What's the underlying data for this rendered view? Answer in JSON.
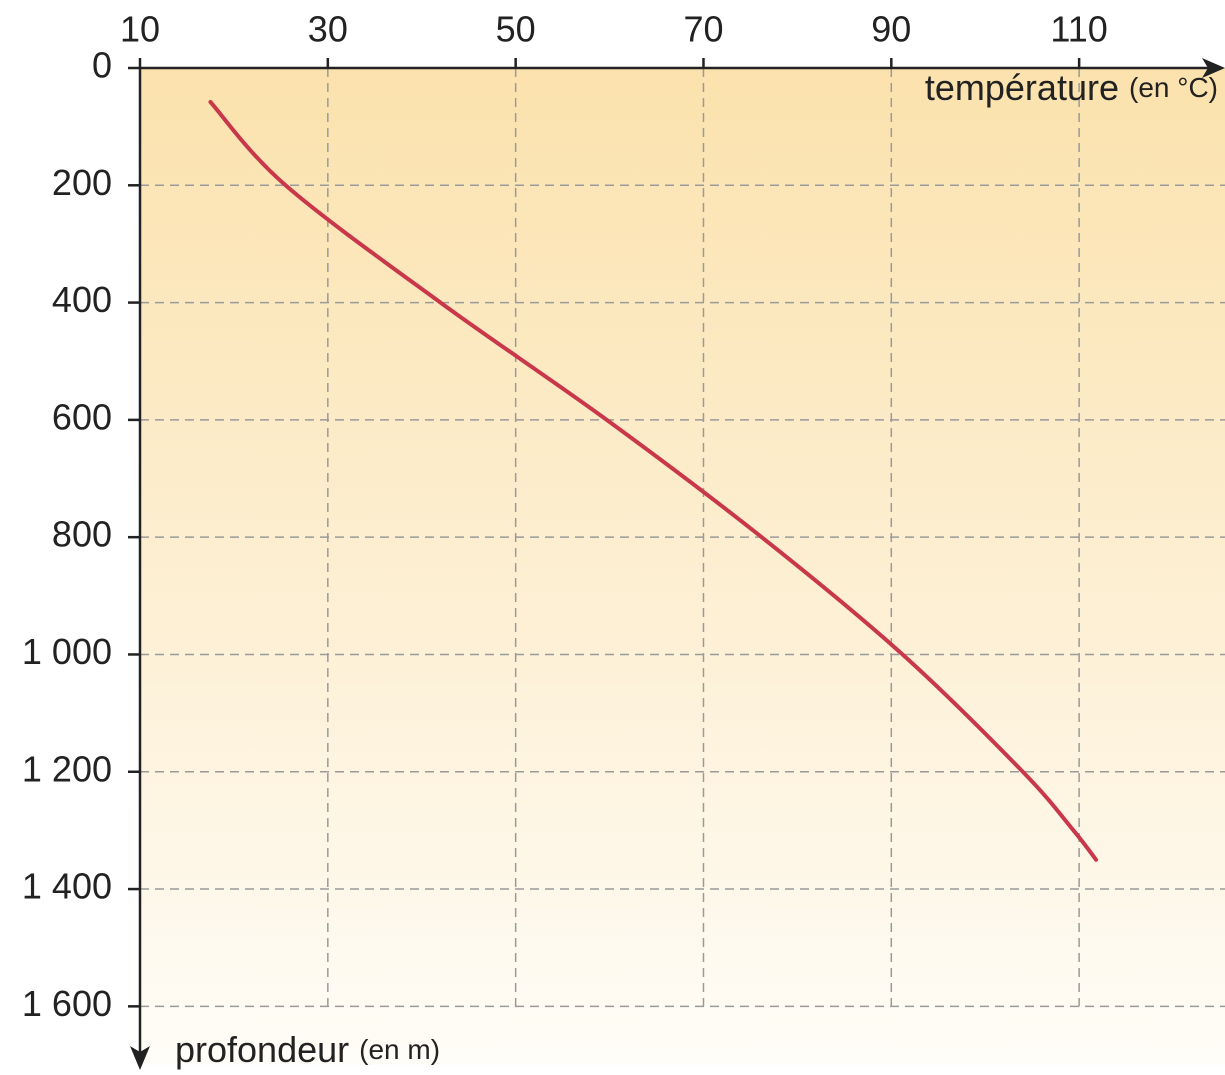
{
  "chart_data": {
    "type": "line",
    "xlabel": {
      "text": "température",
      "unit": "(en °C)"
    },
    "ylabel": {
      "text": "profondeur",
      "unit": "(en m)"
    },
    "x": [
      17.5,
      25.5,
      42,
      59.7,
      76.2,
      91.2,
      104,
      109.4,
      111.8
    ],
    "series": [
      {
        "color": "#c8374a",
        "values": [
          58,
          200,
          400,
          600,
          800,
          1000,
          1200,
          1300,
          1350
        ]
      }
    ],
    "xlim": [
      10,
      125
    ],
    "xticks": [
      10,
      30,
      50,
      70,
      90,
      110
    ],
    "ylim": [
      0,
      1700
    ],
    "yticks": [
      0,
      200,
      400,
      600,
      800,
      {
        "value": 1000,
        "label": "1 000"
      },
      {
        "value": 1200,
        "label": "1 200"
      },
      {
        "value": 1400,
        "label": "1 400"
      },
      {
        "value": 1600,
        "label": "1 600"
      }
    ],
    "y_inverted": true,
    "grid": true
  }
}
